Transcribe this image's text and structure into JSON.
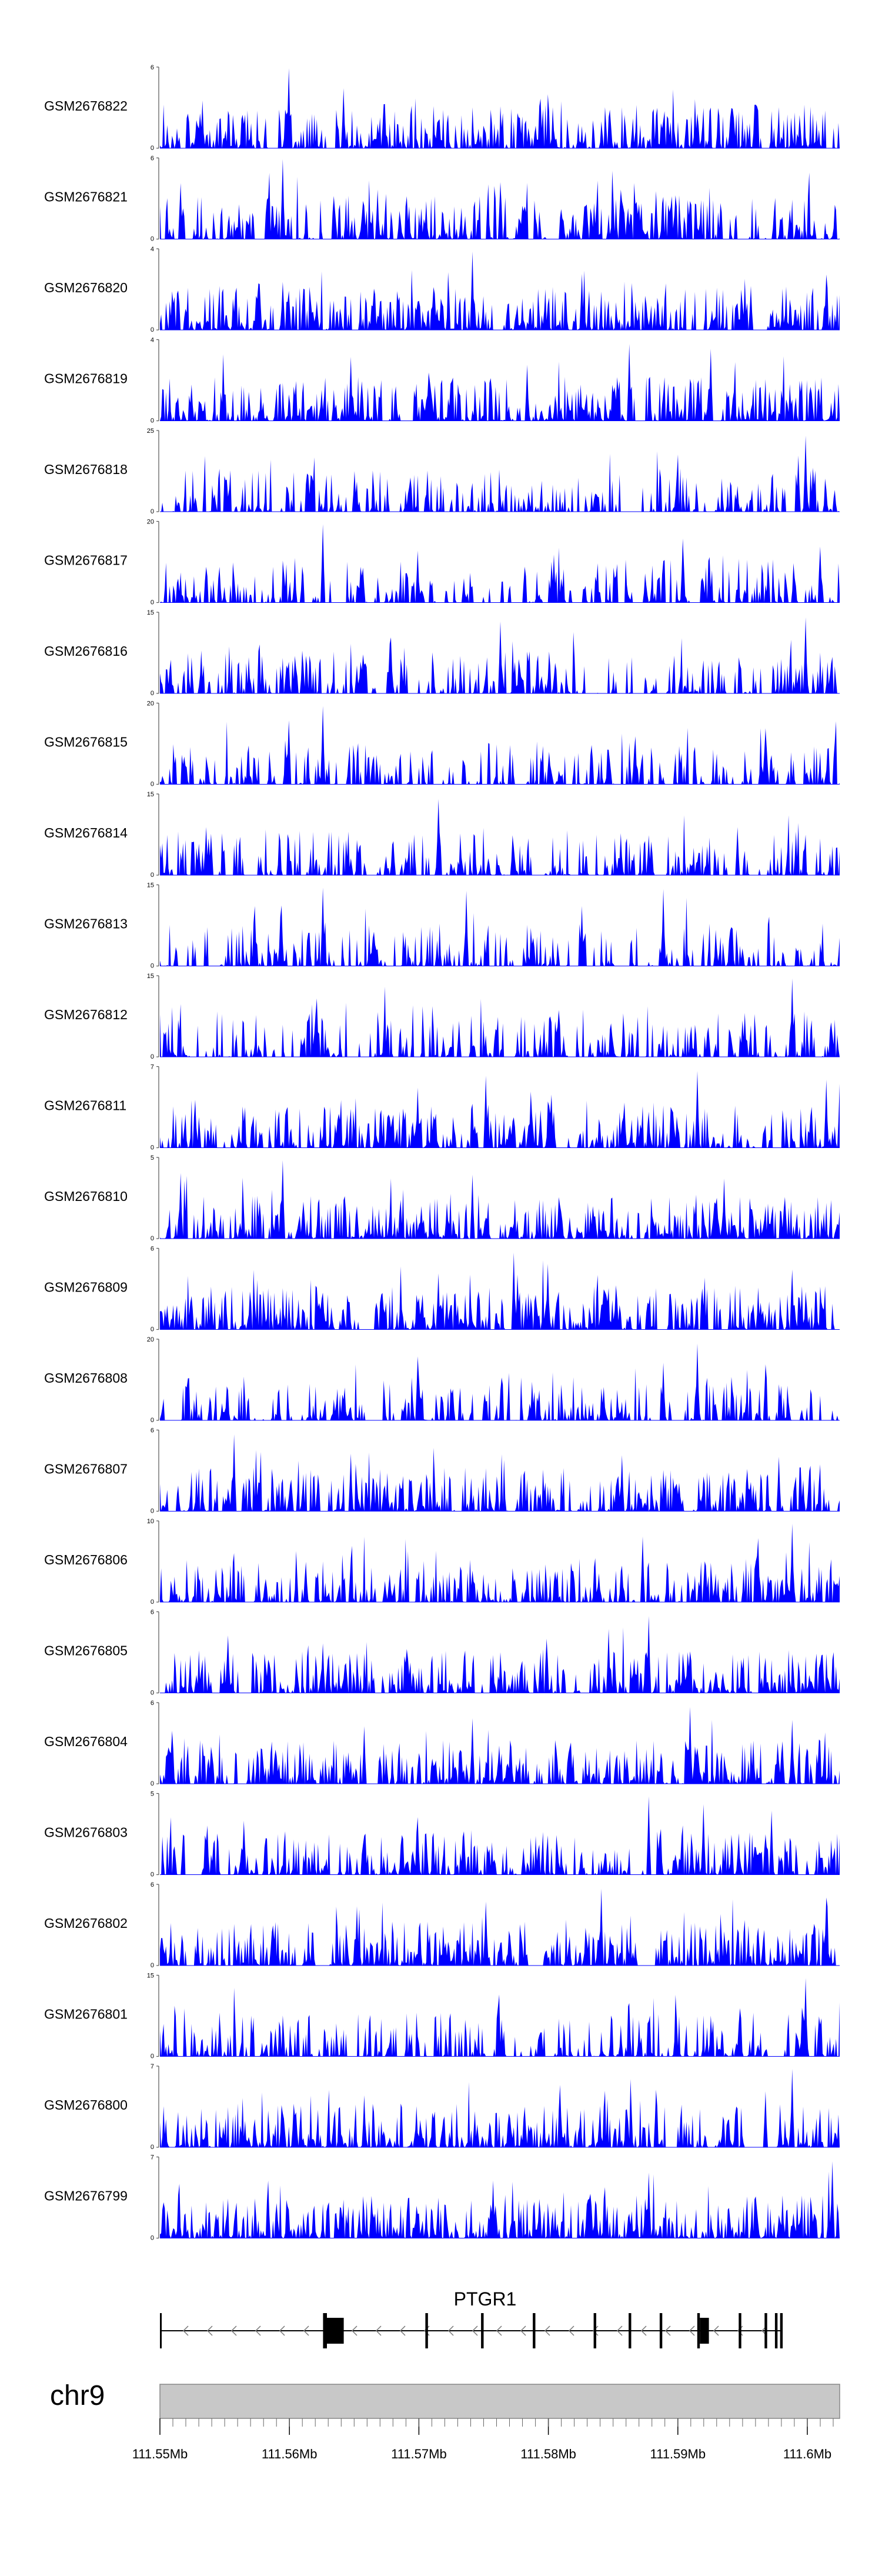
{
  "chart_data": {
    "type": "area",
    "track_color": "#0000ff",
    "gene_color": "#000000",
    "chrom_bar_color": "#c8c8c8",
    "tracks": [
      {
        "label": "GSM2676822",
        "ymax": "6",
        "ymin": "0",
        "seed": 822,
        "density": 0.85,
        "spikes": [
          [
            0.19,
            1.0
          ],
          [
            0.27,
            0.75
          ],
          [
            0.56,
            0.62
          ],
          [
            0.33,
            0.55
          ]
        ]
      },
      {
        "label": "GSM2676821",
        "ymax": "6",
        "ymin": "0",
        "seed": 821,
        "density": 0.8,
        "spikes": [
          [
            0.18,
            1.0
          ],
          [
            0.03,
            0.7
          ],
          [
            0.32,
            0.62
          ],
          [
            0.73,
            0.6
          ]
        ]
      },
      {
        "label": "GSM2676820",
        "ymax": "4",
        "ymin": "0",
        "seed": 820,
        "density": 0.9,
        "spikes": [
          [
            0.46,
            0.98
          ],
          [
            0.18,
            0.6
          ],
          [
            0.62,
            0.7
          ],
          [
            0.87,
            0.55
          ]
        ]
      },
      {
        "label": "GSM2676819",
        "ymax": "4",
        "ymin": "0",
        "seed": 819,
        "density": 0.92,
        "spikes": [
          [
            0.69,
            0.96
          ],
          [
            0.81,
            0.9
          ],
          [
            0.28,
            0.8
          ],
          [
            0.54,
            0.7
          ]
        ]
      },
      {
        "label": "GSM2676818",
        "ymax": "25",
        "ymin": "0",
        "seed": 818,
        "density": 0.6,
        "spikes": [
          [
            0.95,
            0.95
          ],
          [
            0.94,
            0.7
          ],
          [
            0.96,
            0.55
          ],
          [
            0.76,
            0.45
          ]
        ]
      },
      {
        "label": "GSM2676817",
        "ymax": "20",
        "ymin": "0",
        "seed": 817,
        "density": 0.55,
        "spikes": [
          [
            0.24,
            0.98
          ],
          [
            0.77,
            0.8
          ],
          [
            0.38,
            0.65
          ],
          [
            0.58,
            0.6
          ]
        ]
      },
      {
        "label": "GSM2676816",
        "ymax": "15",
        "ymin": "0",
        "seed": 816,
        "density": 0.6,
        "spikes": [
          [
            0.95,
            0.95
          ],
          [
            0.5,
            0.9
          ],
          [
            0.34,
            0.7
          ],
          [
            0.06,
            0.5
          ]
        ]
      },
      {
        "label": "GSM2676815",
        "ymax": "20",
        "ymin": "0",
        "seed": 815,
        "density": 0.5,
        "spikes": [
          [
            0.24,
            0.98
          ],
          [
            0.19,
            0.8
          ],
          [
            0.89,
            0.7
          ],
          [
            0.7,
            0.6
          ]
        ]
      },
      {
        "label": "GSM2676814",
        "ymax": "15",
        "ymin": "0",
        "seed": 814,
        "density": 0.55,
        "spikes": [
          [
            0.41,
            0.95
          ],
          [
            0.85,
            0.6
          ],
          [
            0.72,
            0.5
          ],
          [
            0.19,
            0.45
          ]
        ]
      },
      {
        "label": "GSM2676813",
        "ymax": "15",
        "ymin": "0",
        "seed": 813,
        "density": 0.45,
        "spikes": [
          [
            0.24,
            0.98
          ],
          [
            0.74,
            0.96
          ],
          [
            0.45,
            0.94
          ],
          [
            0.14,
            0.75
          ],
          [
            0.62,
            0.75
          ]
        ]
      },
      {
        "label": "GSM2676812",
        "ymax": "15",
        "ymin": "0",
        "seed": 812,
        "density": 0.65,
        "spikes": [
          [
            0.93,
            0.98
          ],
          [
            0.93,
            0.65
          ],
          [
            0.86,
            0.55
          ],
          [
            0.44,
            0.45
          ]
        ]
      },
      {
        "label": "GSM2676811",
        "ymax": "7",
        "ymin": "0",
        "seed": 811,
        "density": 0.8,
        "spikes": [
          [
            0.79,
            0.96
          ],
          [
            0.48,
            0.9
          ],
          [
            0.98,
            0.85
          ],
          [
            0.38,
            0.75
          ]
        ]
      },
      {
        "label": "GSM2676810",
        "ymax": "5",
        "ymin": "0",
        "seed": 810,
        "density": 0.88,
        "spikes": [
          [
            0.18,
            0.98
          ],
          [
            0.03,
            0.82
          ],
          [
            0.46,
            0.8
          ],
          [
            0.83,
            0.75
          ]
        ]
      },
      {
        "label": "GSM2676809",
        "ymax": "6",
        "ymin": "0",
        "seed": 809,
        "density": 0.85,
        "spikes": [
          [
            0.52,
            0.96
          ],
          [
            0.57,
            0.82
          ],
          [
            0.93,
            0.75
          ],
          [
            0.41,
            0.7
          ]
        ]
      },
      {
        "label": "GSM2676808",
        "ymax": "20",
        "ymin": "0",
        "seed": 808,
        "density": 0.5,
        "spikes": [
          [
            0.79,
            0.96
          ],
          [
            0.38,
            0.8
          ],
          [
            0.74,
            0.72
          ],
          [
            0.89,
            0.7
          ]
        ]
      },
      {
        "label": "GSM2676807",
        "ymax": "6",
        "ymin": "0",
        "seed": 807,
        "density": 0.85,
        "spikes": [
          [
            0.11,
            0.96
          ],
          [
            0.28,
            0.72
          ],
          [
            0.68,
            0.7
          ],
          [
            0.91,
            0.68
          ]
        ]
      },
      {
        "label": "GSM2676806",
        "ymax": "10",
        "ymin": "0",
        "seed": 806,
        "density": 0.7,
        "spikes": [
          [
            0.93,
            0.98
          ],
          [
            0.71,
            0.82
          ],
          [
            0.88,
            0.8
          ],
          [
            0.28,
            0.55
          ]
        ]
      },
      {
        "label": "GSM2676805",
        "ymax": "6",
        "ymin": "0",
        "seed": 805,
        "density": 0.85,
        "spikes": [
          [
            0.72,
            0.96
          ],
          [
            0.66,
            0.8
          ],
          [
            0.1,
            0.72
          ],
          [
            0.24,
            0.62
          ]
        ]
      },
      {
        "label": "GSM2676804",
        "ymax": "6",
        "ymin": "0",
        "seed": 804,
        "density": 0.85,
        "spikes": [
          [
            0.78,
            0.96
          ],
          [
            0.46,
            0.82
          ],
          [
            0.93,
            0.8
          ],
          [
            0.3,
            0.72
          ]
        ]
      },
      {
        "label": "GSM2676803",
        "ymax": "5",
        "ymin": "0",
        "seed": 803,
        "density": 0.85,
        "spikes": [
          [
            0.72,
            0.98
          ],
          [
            0.8,
            0.88
          ],
          [
            0.9,
            0.8
          ],
          [
            0.38,
            0.72
          ]
        ]
      },
      {
        "label": "GSM2676802",
        "ymax": "6",
        "ymin": "0",
        "seed": 802,
        "density": 0.88,
        "spikes": [
          [
            0.65,
            0.96
          ],
          [
            0.98,
            0.85
          ],
          [
            0.48,
            0.8
          ],
          [
            0.29,
            0.74
          ]
        ]
      },
      {
        "label": "GSM2676801",
        "ymax": "15",
        "ymin": "0",
        "seed": 801,
        "density": 0.55,
        "spikes": [
          [
            0.95,
            0.98
          ],
          [
            0.95,
            0.6
          ],
          [
            0.97,
            0.5
          ],
          [
            0.17,
            0.35
          ]
        ]
      },
      {
        "label": "GSM2676800",
        "ymax": "7",
        "ymin": "0",
        "seed": 800,
        "density": 0.85,
        "spikes": [
          [
            0.93,
            0.98
          ],
          [
            0.73,
            0.72
          ],
          [
            0.89,
            0.7
          ],
          [
            0.3,
            0.65
          ]
        ]
      },
      {
        "label": "GSM2676799",
        "ymax": "7",
        "ymin": "0",
        "seed": 799,
        "density": 0.88,
        "spikes": [
          [
            0.99,
            0.96
          ],
          [
            0.72,
            0.82
          ],
          [
            0.16,
            0.72
          ],
          [
            0.49,
            0.72
          ]
        ]
      }
    ],
    "gene": {
      "name": "PTGR1",
      "strand": "-",
      "start_mb": 111.55,
      "end_mb": 111.598,
      "exons_mb": [
        [
          111.55,
          111.5501
        ],
        [
          111.5626,
          111.5629
        ],
        [
          111.5629,
          111.5642
        ],
        [
          111.5705,
          111.5707
        ],
        [
          111.5748,
          111.575
        ],
        [
          111.5788,
          111.579
        ],
        [
          111.5835,
          111.5837
        ],
        [
          111.5862,
          111.5864
        ],
        [
          111.5886,
          111.5888
        ],
        [
          111.5915,
          111.5917
        ],
        [
          111.5917,
          111.5924
        ],
        [
          111.5947,
          111.5949
        ],
        [
          111.5967,
          111.5969
        ],
        [
          111.5975,
          111.5977
        ],
        [
          111.5979,
          111.5981
        ]
      ]
    },
    "chromosome": "chr9",
    "x_range_mb": [
      111.55,
      111.6025
    ],
    "x_ticks": [
      "111.55Mb",
      "111.56Mb",
      "111.57Mb",
      "111.58Mb",
      "111.59Mb",
      "111.6Mb"
    ],
    "x_tick_values": [
      111.55,
      111.56,
      111.57,
      111.58,
      111.59,
      111.6
    ]
  }
}
